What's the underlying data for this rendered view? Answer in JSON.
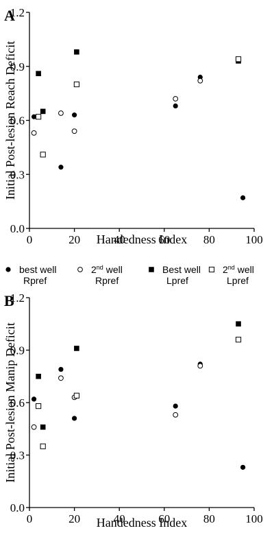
{
  "chart_data": [
    {
      "type": "scatter",
      "panel_label": "A",
      "xlabel": "Handedness Index",
      "ylabel": "Initial Post-lesion Reach Deficit",
      "xlim": [
        0,
        100
      ],
      "ylim": [
        0,
        1.2
      ],
      "xticks": [
        "0",
        "20",
        "40",
        "60",
        "80",
        "100"
      ],
      "yticks": [
        "0.0",
        "0.3",
        "0.6",
        "0.9",
        "1.2"
      ],
      "grid": false,
      "series": [
        {
          "key": "best_rpref",
          "marker": "filled-circle",
          "points": [
            [
              2,
              0.62
            ],
            [
              14,
              0.34
            ],
            [
              20,
              0.63
            ],
            [
              65,
              0.68
            ],
            [
              76,
              0.84
            ],
            [
              95,
              0.17
            ]
          ]
        },
        {
          "key": "second_rpref",
          "marker": "open-circle",
          "points": [
            [
              2,
              0.53
            ],
            [
              14,
              0.64
            ],
            [
              20,
              0.54
            ],
            [
              65,
              0.72
            ],
            [
              76,
              0.82
            ]
          ]
        },
        {
          "key": "best_lpref",
          "marker": "filled-square",
          "points": [
            [
              4,
              0.86
            ],
            [
              6,
              0.65
            ],
            [
              21,
              0.98
            ],
            [
              93,
              0.93
            ]
          ]
        },
        {
          "key": "second_lpref",
          "marker": "open-square",
          "points": [
            [
              4,
              0.62
            ],
            [
              6,
              0.41
            ],
            [
              21,
              0.8
            ],
            [
              93,
              0.94
            ]
          ]
        }
      ]
    },
    {
      "type": "scatter",
      "panel_label": "B",
      "xlabel": "Handedness Index",
      "ylabel": "Initial Post-lesion Manip Deficit",
      "xlim": [
        0,
        100
      ],
      "ylim": [
        0,
        1.2
      ],
      "xticks": [
        "0",
        "20",
        "40",
        "60",
        "80",
        "100"
      ],
      "yticks": [
        "0.0",
        "0.3",
        "0.6",
        "0.9",
        "1.2"
      ],
      "grid": false,
      "series": [
        {
          "key": "best_rpref",
          "marker": "filled-circle",
          "points": [
            [
              2,
              0.62
            ],
            [
              14,
              0.79
            ],
            [
              20,
              0.51
            ],
            [
              65,
              0.58
            ],
            [
              76,
              0.82
            ],
            [
              95,
              0.23
            ]
          ]
        },
        {
          "key": "second_rpref",
          "marker": "open-circle",
          "points": [
            [
              2,
              0.46
            ],
            [
              14,
              0.74
            ],
            [
              20,
              0.63
            ],
            [
              65,
              0.53
            ],
            [
              76,
              0.81
            ]
          ]
        },
        {
          "key": "best_lpref",
          "marker": "filled-square",
          "points": [
            [
              4,
              0.75
            ],
            [
              6,
              0.46
            ],
            [
              21,
              0.91
            ],
            [
              93,
              1.05
            ]
          ]
        },
        {
          "key": "second_lpref",
          "marker": "open-square",
          "points": [
            [
              4,
              0.58
            ],
            [
              6,
              0.35
            ],
            [
              21,
              0.64
            ],
            [
              93,
              0.96
            ]
          ]
        }
      ]
    }
  ],
  "legend": {
    "placement": "between-panels",
    "items": [
      {
        "key": "best_rpref",
        "line1": "best well",
        "line1_sup": "",
        "line1_rest": "",
        "line2": "Rpref"
      },
      {
        "key": "second_rpref",
        "line1": "2",
        "line1_sup": "nd",
        "line1_rest": " well",
        "line2": "Rpref"
      },
      {
        "key": "best_lpref",
        "line1": "Best well",
        "line1_sup": "",
        "line1_rest": "",
        "line2": "Lpref"
      },
      {
        "key": "second_lpref",
        "line1": "2",
        "line1_sup": "nd",
        "line1_rest": " well",
        "line2": "Lpref"
      }
    ]
  }
}
